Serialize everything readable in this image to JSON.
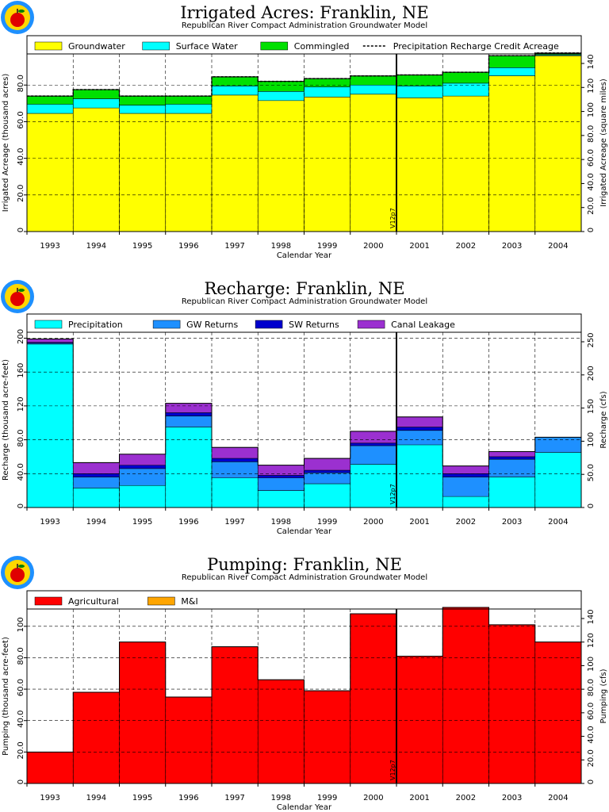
{
  "chart_data": [
    {
      "type": "stacked-area-step",
      "title": "Irrigated Acres: Franklin, NE",
      "subtitle": "Republican River Compact Administration Groundwater Model",
      "xlabel": "Calendar Year",
      "ylabel": "Irrigated Acreage (thousand acres)",
      "ylabel_right": "Irrigated Acreage (square miles)",
      "categories": [
        "1993",
        "1994",
        "1995",
        "1996",
        "1997",
        "1998",
        "1999",
        "2000",
        "2001",
        "2002",
        "2003",
        "2004"
      ],
      "ylim": [
        0,
        97
      ],
      "yticks": [
        "0",
        "20.0",
        "40.0",
        "60.0",
        "80.0"
      ],
      "yticks_right": [
        "0",
        "20.0",
        "40.0",
        "60.0",
        "80.0",
        "100",
        "120",
        "140"
      ],
      "series": [
        {
          "name": "Groundwater",
          "color": "#ffff00",
          "values": [
            64.5,
            67.5,
            64.5,
            64.5,
            74.5,
            71.5,
            73.5,
            75.0,
            73.0,
            74.0,
            85.0,
            96.0
          ]
        },
        {
          "name": "Surface Water",
          "color": "#00ffff",
          "values": [
            5.0,
            5.0,
            4.5,
            5.0,
            5.0,
            5.0,
            5.5,
            5.0,
            6.5,
            7.0,
            4.5,
            0.5
          ]
        },
        {
          "name": "Commingled",
          "color": "#00e000",
          "values": [
            4.5,
            5.0,
            5.0,
            4.5,
            5.0,
            5.5,
            4.5,
            5.0,
            6.0,
            6.0,
            6.5,
            1.0
          ]
        }
      ],
      "dashed_line": {
        "name": "Precipitation Recharge Credit Acreage",
        "values": [
          74.0,
          77.5,
          74.0,
          74.0,
          84.5,
          82.0,
          83.5,
          85.0,
          85.5,
          87.0,
          96.0,
          97.5
        ]
      },
      "marker": {
        "label": "V12p7",
        "position": "between 2000 and 2001"
      },
      "grid": true,
      "legend": "top"
    },
    {
      "type": "stacked-area-step",
      "title": "Recharge: Franklin, NE",
      "subtitle": "Republican River Compact Administration Groundwater Model",
      "xlabel": "Calendar Year",
      "ylabel": "Recharge (thousand acre-feet)",
      "ylabel_right": "Recharge (cfs)",
      "categories": [
        "1993",
        "1994",
        "1995",
        "1996",
        "1997",
        "1998",
        "1999",
        "2000",
        "2001",
        "2002",
        "2003",
        "2004"
      ],
      "ylim": [
        0,
        207
      ],
      "yticks": [
        "0",
        "40.0",
        "80.0",
        "120",
        "160",
        "200"
      ],
      "yticks_right": [
        "0",
        "50.0",
        "100",
        "150",
        "200",
        "250"
      ],
      "series": [
        {
          "name": "Precipitation",
          "color": "#00ffff",
          "values": [
            193,
            23,
            26,
            95,
            35,
            20,
            28,
            51,
            74,
            13,
            36,
            65
          ]
        },
        {
          "name": "GW Returns",
          "color": "#1e90ff",
          "values": [
            1,
            13,
            20,
            13,
            19,
            15,
            13,
            22,
            17,
            23,
            21,
            18
          ]
        },
        {
          "name": "SW Returns",
          "color": "#0000cd",
          "values": [
            1,
            4,
            4,
            4,
            4,
            3,
            3,
            3,
            4,
            4,
            3,
            0
          ]
        },
        {
          "name": "Canal Leakage",
          "color": "#9b30d0",
          "values": [
            4,
            13,
            13,
            11,
            13,
            12,
            14,
            14,
            12,
            9,
            6,
            0
          ]
        }
      ],
      "marker": {
        "label": "V12p7",
        "position": "between 2000 and 2001"
      },
      "grid": true,
      "legend": "top"
    },
    {
      "type": "stacked-area-step",
      "title": "Pumping: Franklin, NE",
      "subtitle": "Republican River Compact Administration Groundwater Model",
      "xlabel": "Calendar Year",
      "ylabel": "Pumping (thousand acre-feet)",
      "ylabel_right": "Pumping (cfs)",
      "categories": [
        "1993",
        "1994",
        "1995",
        "1996",
        "1997",
        "1998",
        "1999",
        "2000",
        "2001",
        "2002",
        "2003",
        "2004"
      ],
      "ylim": [
        0,
        111
      ],
      "yticks": [
        "0",
        "20.0",
        "40.0",
        "60.0",
        "80.0",
        "100"
      ],
      "yticks_right": [
        "0",
        "20.0",
        "40.0",
        "60.0",
        "80.0",
        "100",
        "120",
        "140"
      ],
      "series": [
        {
          "name": "Agricultural",
          "color": "#ff0000",
          "values": [
            20,
            58,
            90,
            55,
            87,
            66,
            59,
            108,
            81,
            112,
            101,
            90
          ]
        },
        {
          "name": "M&I",
          "color": "#ffa500",
          "values": [
            0,
            0,
            0,
            0,
            0,
            0,
            0,
            0,
            0,
            0,
            0,
            0
          ]
        }
      ],
      "marker": {
        "label": "V12p7",
        "position": "between 2000 and 2001"
      },
      "grid": true,
      "legend": "top"
    }
  ]
}
